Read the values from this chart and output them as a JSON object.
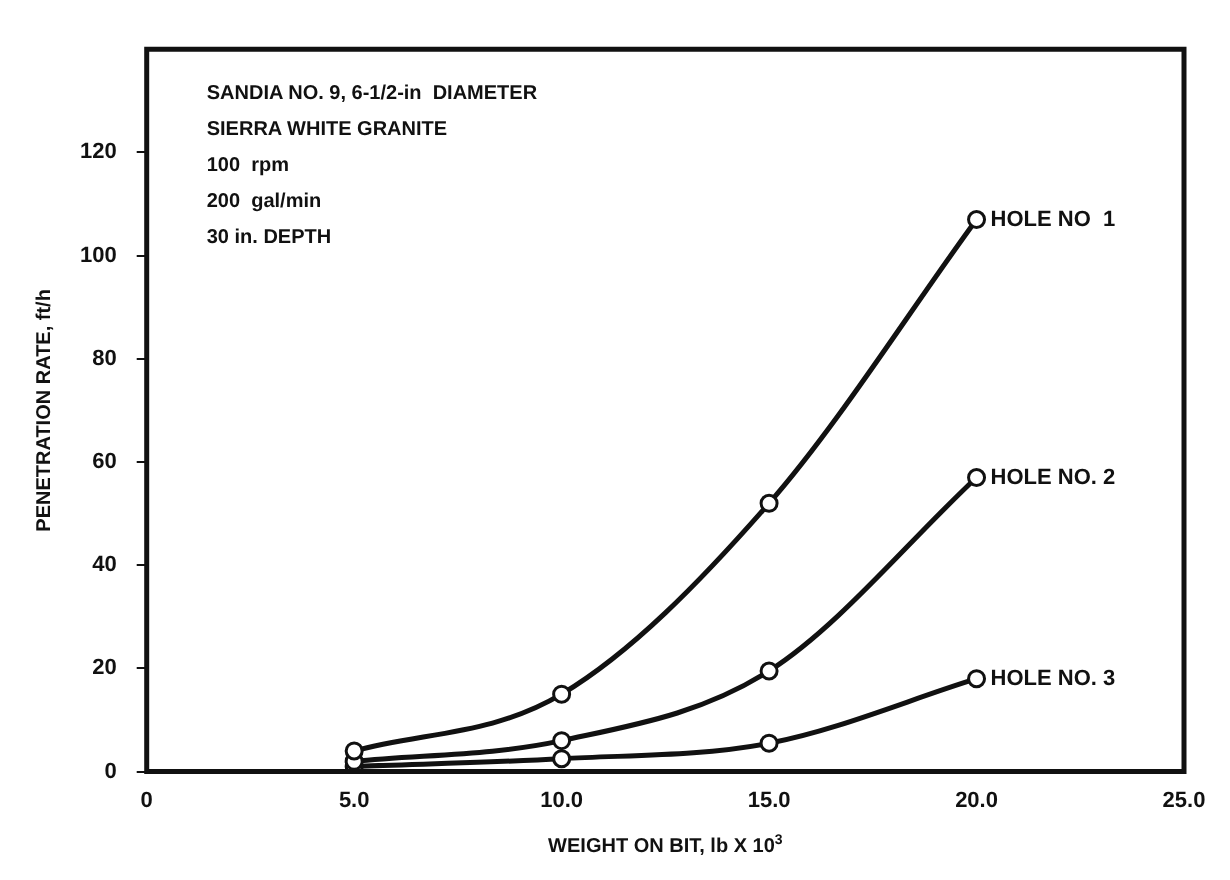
{
  "chart_data": {
    "type": "line",
    "xlabel": "WEIGHT ON BIT, lb X 10$^{3}$",
    "ylabel": "PENETRATION RATE, ft/h",
    "annotations": [
      "SANDIA NO. 9, 6-1/2-in  DIAMETER",
      "SIERRA WHITE GRANITE",
      "100  rpm",
      "200  gal/min",
      "30 in. DEPTH"
    ],
    "x": [
      5,
      10,
      15,
      20
    ],
    "series": [
      {
        "name": "HOLE NO  1",
        "color": "#111111",
        "values": [
          4,
          15,
          52,
          107
        ]
      },
      {
        "name": "HOLE NO. 2",
        "color": "#111111",
        "values": [
          2,
          6,
          19.5,
          57
        ]
      },
      {
        "name": "HOLE NO. 3",
        "color": "#111111",
        "values": [
          1,
          2.5,
          5.5,
          18
        ]
      }
    ],
    "xlim": [
      0,
      25
    ],
    "xticks": [
      {
        "value": 0,
        "label": "0"
      },
      {
        "value": 5,
        "label": "5.0"
      },
      {
        "value": 10,
        "label": "10.0"
      },
      {
        "value": 15,
        "label": "15.0"
      },
      {
        "value": 20,
        "label": "20.0"
      },
      {
        "value": 25,
        "label": "25.0"
      }
    ],
    "ylim": [
      0,
      140
    ],
    "yticks": [
      0,
      20,
      40,
      60,
      80,
      100,
      120
    ],
    "grid": false,
    "legend": false,
    "marker": "circle",
    "line_style": "solid"
  }
}
